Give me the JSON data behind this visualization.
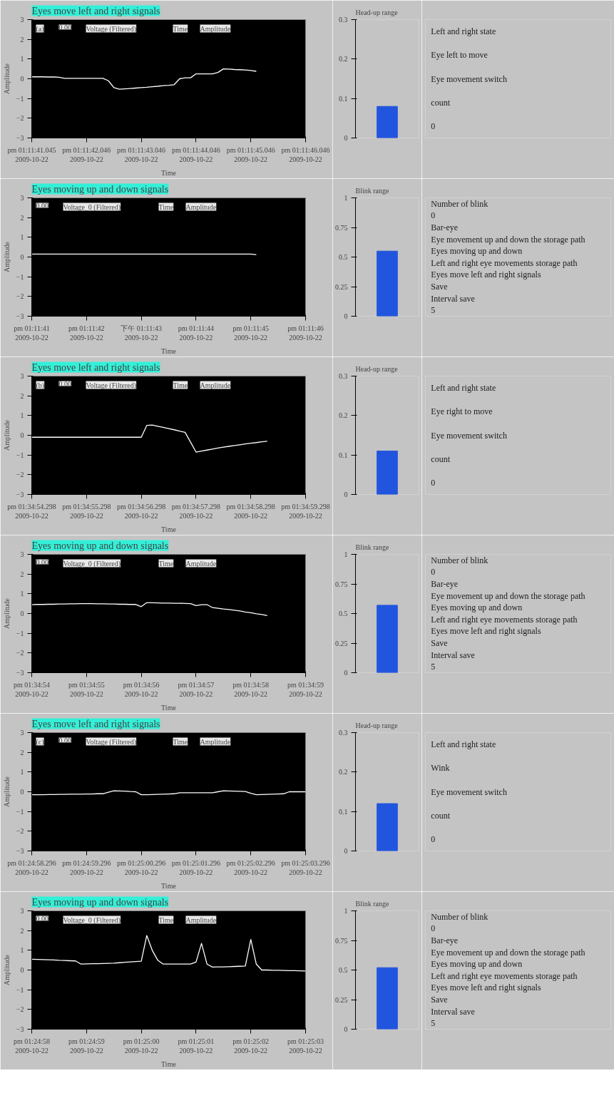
{
  "chart_data": [
    {
      "type": "line",
      "title": "Eyes move left and right signals",
      "xlabel": "Time",
      "ylabel": "Amplitude",
      "annotations": [
        "(a)",
        "0.00",
        "Voltage (Filtered)",
        "Time",
        "Amplitude"
      ],
      "categories": [
        "pm 01:11:41.045\n2009-10-22",
        null,
        null,
        null,
        null,
        null,
        null,
        null,
        null,
        null,
        "pm 01:11:42.046\n2009-10-22",
        null,
        null,
        null,
        null,
        null,
        null,
        null,
        null,
        null,
        "pm 01:11:43.046\n2009-10-22",
        null,
        null,
        null,
        null,
        null,
        null,
        null,
        null,
        null,
        "pm 01:11:44.046\n2009-10-22",
        null,
        null,
        null,
        null,
        null,
        null,
        null,
        null,
        null,
        "pm 01:11:45.046\n2009-10-22",
        null,
        null,
        null,
        null,
        null,
        null,
        null,
        null,
        null,
        "pm 01:11:46.046\n2009-10-22"
      ],
      "series": [
        {
          "color": "#ffffff",
          "values": [
            0.1,
            0.1,
            0.1,
            0.09,
            0.09,
            0.08,
            0.02,
            0.02,
            0.02,
            0.02,
            0.02,
            0.02,
            0.02,
            0.02,
            -0.1,
            -0.45,
            -0.53,
            -0.51,
            -0.49,
            -0.47,
            -0.45,
            -0.43,
            -0.4,
            -0.38,
            -0.35,
            -0.33,
            -0.3,
            0.0,
            0.05,
            0.05,
            0.25,
            0.25,
            0.25,
            0.25,
            0.32,
            0.5,
            0.49,
            0.47,
            0.46,
            0.45,
            0.42,
            0.38,
            null,
            null,
            null,
            null,
            null,
            null,
            null,
            null,
            null
          ]
        }
      ],
      "ylim": [
        -3,
        3
      ],
      "yticks": [
        -3,
        -2,
        -1,
        0,
        1,
        2,
        3
      ]
    },
    {
      "type": "bar",
      "title": "Head-up range",
      "categories": [
        null
      ],
      "values": [
        0.08
      ],
      "color": "#2255dd",
      "ylim": [
        0,
        0.3
      ],
      "yticks": [
        0,
        0.1,
        0.2,
        0.3
      ],
      "tick_labels": "y"
    },
    {
      "type": "other",
      "annotations": [
        "Left and right state",
        "Eye left to move",
        "Eye movement switch",
        "count",
        "0"
      ]
    },
    {
      "type": "line",
      "title": "Eyes moving up and down signals",
      "xlabel": "Time",
      "ylabel": "Amplitude",
      "annotations": [
        "0.00",
        "Voltage_0 (Filtered)",
        "Time",
        "Amplitude"
      ],
      "categories": [
        "pm 01:11:41\n2009-10-22",
        null,
        null,
        null,
        null,
        null,
        null,
        null,
        null,
        null,
        "pm 01:11:42\n2009-10-22",
        null,
        null,
        null,
        null,
        null,
        null,
        null,
        null,
        null,
        "下午 01:11:43\n2009-10-22",
        null,
        null,
        null,
        null,
        null,
        null,
        null,
        null,
        null,
        "pm 01:11:44\n2009-10-22",
        null,
        null,
        null,
        null,
        null,
        null,
        null,
        null,
        null,
        "pm 01:11:45\n2009-10-22",
        null,
        null,
        null,
        null,
        null,
        null,
        null,
        null,
        null,
        "pm 01:11:46\n2009-10-22"
      ],
      "series": [
        {
          "color": "#ffffff",
          "values": [
            0.15,
            0.15,
            0.15,
            0.15,
            0.15,
            0.15,
            0.15,
            0.15,
            0.15,
            0.15,
            0.15,
            0.15,
            0.15,
            0.15,
            0.15,
            0.15,
            0.15,
            0.15,
            0.15,
            0.15,
            0.15,
            0.15,
            0.15,
            0.15,
            0.15,
            0.15,
            0.15,
            0.15,
            0.15,
            0.15,
            0.15,
            0.15,
            0.15,
            0.15,
            0.15,
            0.15,
            0.15,
            0.15,
            0.15,
            0.15,
            0.15,
            0.12,
            null,
            null,
            null,
            null,
            null,
            null,
            null,
            null,
            null
          ]
        }
      ],
      "ylim": [
        -3,
        3
      ],
      "yticks": [
        -3,
        -2,
        -1,
        0,
        1,
        2,
        3
      ]
    },
    {
      "type": "bar",
      "title": "Blink range",
      "categories": [
        null
      ],
      "values": [
        0.55
      ],
      "color": "#2255dd",
      "ylim": [
        0,
        1
      ],
      "yticks": [
        0,
        0.25,
        0.5,
        0.75,
        1
      ],
      "tick_labels": "y"
    },
    {
      "type": "other",
      "annotations": [
        "Number of blink",
        "0",
        "Bar-eye",
        "Eye movement up and down the storage path",
        "Eyes moving up and down",
        "Left and right eye movements storage path",
        "Eyes move left and right signals",
        "Save",
        "Interval save",
        "5"
      ]
    },
    {
      "type": "line",
      "title": "Eyes move left and right signals",
      "xlabel": "Time",
      "ylabel": "Amplitude",
      "annotations": [
        "(b)",
        "0.00",
        "Voltage (Filtered)",
        "Time",
        "Amplitude"
      ],
      "categories": [
        "pm 01:34:54.298\n2009-10-22",
        null,
        null,
        null,
        null,
        null,
        null,
        null,
        null,
        null,
        "pm 01:34:55.298\n2009-10-22",
        null,
        null,
        null,
        null,
        null,
        null,
        null,
        null,
        null,
        "pm 01:34:56.298\n2009-10-22",
        null,
        null,
        null,
        null,
        null,
        null,
        null,
        null,
        null,
        "pm 01:34:57.298\n2009-10-22",
        null,
        null,
        null,
        null,
        null,
        null,
        null,
        null,
        null,
        "pm 01:34:58.298\n2009-10-22",
        null,
        null,
        null,
        null,
        null,
        null,
        null,
        null,
        null,
        "pm 01:34:59.298\n2009-10-22"
      ],
      "series": [
        {
          "color": "#ffffff",
          "values": [
            -0.1,
            -0.1,
            -0.1,
            -0.1,
            -0.1,
            -0.1,
            -0.1,
            -0.1,
            -0.1,
            -0.1,
            -0.1,
            -0.1,
            -0.1,
            -0.1,
            -0.1,
            -0.1,
            -0.1,
            -0.1,
            -0.1,
            -0.1,
            -0.1,
            0.5,
            0.52,
            0.46,
            0.4,
            0.34,
            0.28,
            0.21,
            0.15,
            -0.35,
            -0.85,
            -0.8,
            -0.75,
            -0.7,
            -0.65,
            -0.6,
            -0.56,
            -0.52,
            -0.48,
            -0.44,
            -0.4,
            -0.37,
            -0.33,
            -0.3,
            null,
            null,
            null,
            null,
            null,
            null,
            null
          ]
        }
      ],
      "ylim": [
        -3,
        3
      ],
      "yticks": [
        -3,
        -2,
        -1,
        0,
        1,
        2,
        3
      ]
    },
    {
      "type": "bar",
      "title": "Head-up range",
      "categories": [
        null
      ],
      "values": [
        0.11
      ],
      "color": "#2255dd",
      "ylim": [
        0,
        0.3
      ],
      "yticks": [
        0,
        0.1,
        0.2,
        0.3
      ],
      "tick_labels": "y"
    },
    {
      "type": "other",
      "annotations": [
        "Left and right state",
        "Eye right to move",
        "Eye movement switch",
        "count",
        "0"
      ]
    },
    {
      "type": "line",
      "title": "Eyes moving up and down signals",
      "xlabel": "Time",
      "ylabel": "Amplitude",
      "annotations": [
        "0.00",
        "Voltage_0 (Filtered)",
        "Time",
        "Amplitude"
      ],
      "categories": [
        "pm 01:34:54\n2009-10-22",
        null,
        null,
        null,
        null,
        null,
        null,
        null,
        null,
        null,
        "pm 01:34:55\n2009-10-22",
        null,
        null,
        null,
        null,
        null,
        null,
        null,
        null,
        null,
        "pm 01:34:56\n2009-10-22",
        null,
        null,
        null,
        null,
        null,
        null,
        null,
        null,
        null,
        "pm 01:34:57\n2009-10-22",
        null,
        null,
        null,
        null,
        null,
        null,
        null,
        null,
        null,
        "pm 01:34:58\n2009-10-22",
        null,
        null,
        null,
        null,
        null,
        null,
        null,
        null,
        null,
        "pm 01:34:59\n2009-10-22"
      ],
      "series": [
        {
          "color": "#ffffff",
          "values": [
            0.45,
            0.46,
            0.46,
            0.47,
            0.47,
            0.48,
            0.48,
            0.49,
            0.49,
            0.5,
            0.5,
            0.5,
            0.49,
            0.49,
            0.48,
            0.48,
            0.47,
            0.47,
            0.46,
            0.46,
            0.35,
            0.55,
            0.55,
            0.54,
            0.53,
            0.53,
            0.52,
            0.52,
            0.51,
            0.5,
            0.4,
            0.45,
            0.45,
            0.3,
            0.27,
            0.23,
            0.2,
            0.17,
            0.13,
            0.08,
            0.04,
            -0.01,
            -0.05,
            -0.1,
            null,
            null,
            null,
            null,
            null,
            null,
            null
          ]
        }
      ],
      "ylim": [
        -3,
        3
      ],
      "yticks": [
        -3,
        -2,
        -1,
        0,
        1,
        2,
        3
      ]
    },
    {
      "type": "bar",
      "title": "Blink range",
      "categories": [
        null
      ],
      "values": [
        0.57
      ],
      "color": "#2255dd",
      "ylim": [
        0,
        1
      ],
      "yticks": [
        0,
        0.25,
        0.5,
        0.75,
        1
      ],
      "tick_labels": "y"
    },
    {
      "type": "other",
      "annotations": [
        "Number of blink",
        "0",
        "Bar-eye",
        "Eye movement up and down the storage path",
        "Eyes moving up and down",
        "Left and right eye movements storage path",
        "Eyes move left and right signals",
        "Save",
        "Interval save",
        "5"
      ]
    },
    {
      "type": "line",
      "title": "Eyes move left and right signals",
      "xlabel": "Time",
      "ylabel": "Amplitude",
      "annotations": [
        "(c)",
        "0.00",
        "Voltage (Filtered)",
        "Time",
        "Amplitude"
      ],
      "categories": [
        "pm 01:24:58.296\n2009-10-22",
        null,
        null,
        null,
        null,
        null,
        null,
        null,
        null,
        null,
        "pm 01:24:59.296\n2009-10-22",
        null,
        null,
        null,
        null,
        null,
        null,
        null,
        null,
        null,
        "pm 01:25:00.296\n2009-10-22",
        null,
        null,
        null,
        null,
        null,
        null,
        null,
        null,
        null,
        "pm 01:25:01.296\n2009-10-22",
        null,
        null,
        null,
        null,
        null,
        null,
        null,
        null,
        null,
        "pm 01:25:02.296\n2009-10-22",
        null,
        null,
        null,
        null,
        null,
        null,
        null,
        null,
        null,
        "pm 01:25:03.296\n2009-10-22"
      ],
      "series": [
        {
          "color": "#ffffff",
          "values": [
            -0.15,
            -0.15,
            -0.15,
            -0.14,
            -0.14,
            -0.13,
            -0.13,
            -0.12,
            -0.12,
            -0.12,
            -0.11,
            -0.11,
            -0.1,
            -0.1,
            -0.02,
            0.05,
            0.04,
            0.03,
            0.01,
            0.0,
            -0.15,
            -0.15,
            -0.14,
            -0.13,
            -0.12,
            -0.11,
            -0.1,
            -0.05,
            -0.05,
            -0.05,
            -0.05,
            -0.05,
            -0.05,
            -0.05,
            0.0,
            0.05,
            0.04,
            0.03,
            0.02,
            0.01,
            -0.08,
            -0.15,
            -0.14,
            -0.13,
            -0.12,
            -0.11,
            -0.1,
            0.0,
            0.0,
            0.0,
            0.0
          ]
        }
      ],
      "ylim": [
        -3,
        3
      ],
      "yticks": [
        -3,
        -2,
        -1,
        0,
        1,
        2,
        3
      ]
    },
    {
      "type": "bar",
      "title": "Head-up range",
      "categories": [
        null
      ],
      "values": [
        0.12
      ],
      "color": "#2255dd",
      "ylim": [
        0,
        0.3
      ],
      "yticks": [
        0,
        0.1,
        0.2,
        0.3
      ],
      "tick_labels": "y"
    },
    {
      "type": "other",
      "annotations": [
        "Left and right state",
        "Wink",
        "Eye movement switch",
        "count",
        "0"
      ]
    },
    {
      "type": "line",
      "title": "Eyes moving up and down signals",
      "xlabel": "Time",
      "ylabel": "Amplitude",
      "annotations": [
        "0.00",
        "Voltage_0 (Filtered)",
        "Time",
        "Amplitude"
      ],
      "categories": [
        "pm 01:24:58\n2009-10-22",
        null,
        null,
        null,
        null,
        null,
        null,
        null,
        null,
        null,
        "pm 01:24:59\n2009-10-22",
        null,
        null,
        null,
        null,
        null,
        null,
        null,
        null,
        null,
        "pm 01:25:00\n2009-10-22",
        null,
        null,
        null,
        null,
        null,
        null,
        null,
        null,
        null,
        "pm 01:25:01\n2009-10-22",
        null,
        null,
        null,
        null,
        null,
        null,
        null,
        null,
        null,
        "pm 01:25:02\n2009-10-22",
        null,
        null,
        null,
        null,
        null,
        null,
        null,
        null,
        null,
        "pm 01:25:03\n2009-10-22"
      ],
      "series": [
        {
          "color": "#ffffff",
          "values": [
            0.55,
            0.54,
            0.53,
            0.52,
            0.51,
            0.49,
            0.48,
            0.47,
            0.46,
            0.3,
            0.31,
            0.32,
            0.32,
            0.33,
            0.34,
            0.35,
            0.37,
            0.39,
            0.41,
            0.43,
            0.45,
            1.75,
            1.0,
            0.5,
            0.3,
            0.3,
            0.3,
            0.3,
            0.3,
            0.3,
            0.4,
            1.35,
            0.3,
            0.15,
            0.16,
            0.16,
            0.17,
            0.18,
            0.19,
            0.2,
            1.55,
            0.3,
            0.0,
            0.0,
            -0.01,
            -0.01,
            -0.02,
            -0.03,
            -0.03,
            -0.04,
            -0.05
          ]
        }
      ],
      "ylim": [
        -3,
        3
      ],
      "yticks": [
        -3,
        -2,
        -1,
        0,
        1,
        2,
        3
      ]
    },
    {
      "type": "bar",
      "title": "Blink range",
      "categories": [
        null
      ],
      "values": [
        0.52
      ],
      "color": "#2255dd",
      "ylim": [
        0,
        1
      ],
      "yticks": [
        0,
        0.25,
        0.5,
        0.75,
        1
      ],
      "tick_labels": "y"
    },
    {
      "type": "other",
      "annotations": [
        "Number of blink",
        "0",
        "Bar-eye",
        "Eye movement up and down the storage path",
        "Eyes moving up and down",
        "Left and right eye movements storage path",
        "Eyes move left and right signals",
        "Save",
        "Interval save",
        "5"
      ]
    }
  ]
}
